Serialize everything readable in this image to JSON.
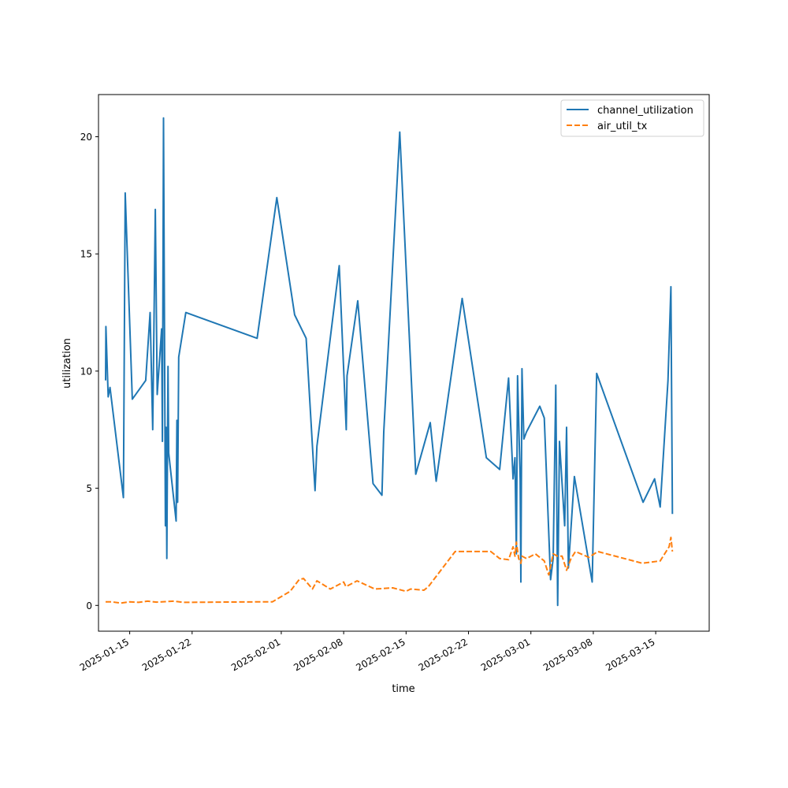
{
  "chart_data": {
    "type": "line",
    "title": "",
    "xlabel": "time",
    "ylabel": "utilization",
    "xlim": [
      "2025-01-11T12:00",
      "2025-03-21T00:00"
    ],
    "ylim": [
      -1.1,
      21.8
    ],
    "x_ticks": [
      "2025-01-15",
      "2025-01-22",
      "2025-02-01",
      "2025-02-08",
      "2025-02-15",
      "2025-02-22",
      "2025-03-01",
      "2025-03-08",
      "2025-03-15"
    ],
    "y_ticks": [
      0,
      5,
      10,
      15,
      20
    ],
    "grid": false,
    "legend": "top-right",
    "series": [
      {
        "name": "channel_utilization",
        "color": "#1f77b4",
        "dash": "solid",
        "points": [
          [
            "2025-01-12T07:00",
            9.6
          ],
          [
            "2025-01-12T08:00",
            11.9
          ],
          [
            "2025-01-12T14:00",
            8.9
          ],
          [
            "2025-01-12T19:00",
            9.3
          ],
          [
            "2025-01-14T07:00",
            4.6
          ],
          [
            "2025-01-14T12:00",
            17.6
          ],
          [
            "2025-01-15T07:00",
            8.8
          ],
          [
            "2025-01-16T19:00",
            9.6
          ],
          [
            "2025-01-17T07:00",
            12.5
          ],
          [
            "2025-01-17T14:00",
            7.5
          ],
          [
            "2025-01-17T21:00",
            16.9
          ],
          [
            "2025-01-18T02:00",
            9.0
          ],
          [
            "2025-01-18T14:00",
            11.8
          ],
          [
            "2025-01-18T16:00",
            7.0
          ],
          [
            "2025-01-18T19:00",
            20.8
          ],
          [
            "2025-01-19T00:00",
            3.4
          ],
          [
            "2025-01-19T02:00",
            7.6
          ],
          [
            "2025-01-19T04:00",
            2.0
          ],
          [
            "2025-01-19T07:00",
            10.2
          ],
          [
            "2025-01-19T09:00",
            6.5
          ],
          [
            "2025-01-20T05:00",
            3.6
          ],
          [
            "2025-01-20T07:00",
            7.9
          ],
          [
            "2025-01-20T09:00",
            4.4
          ],
          [
            "2025-01-20T12:00",
            10.6
          ],
          [
            "2025-01-21T07:00",
            12.5
          ],
          [
            "2025-01-29T07:00",
            11.4
          ],
          [
            "2025-01-31T12:00",
            17.4
          ],
          [
            "2025-02-02T12:00",
            12.4
          ],
          [
            "2025-02-03T19:00",
            11.4
          ],
          [
            "2025-02-04T19:00",
            4.9
          ],
          [
            "2025-02-05T00:00",
            6.8
          ],
          [
            "2025-02-07T12:00",
            14.5
          ],
          [
            "2025-02-08T07:00",
            7.5
          ],
          [
            "2025-02-08T09:00",
            9.8
          ],
          [
            "2025-02-09T14:00",
            13.0
          ],
          [
            "2025-02-11T07:00",
            5.2
          ],
          [
            "2025-02-12T07:00",
            4.7
          ],
          [
            "2025-02-12T12:00",
            7.4
          ],
          [
            "2025-02-14T07:00",
            20.2
          ],
          [
            "2025-02-16T02:00",
            5.6
          ],
          [
            "2025-02-17T17:00",
            7.8
          ],
          [
            "2025-02-18T09:00",
            5.3
          ],
          [
            "2025-02-21T07:00",
            13.1
          ],
          [
            "2025-02-24T00:00",
            6.3
          ],
          [
            "2025-02-25T12:00",
            5.8
          ],
          [
            "2025-02-26T12:00",
            9.7
          ],
          [
            "2025-02-27T00:00",
            5.4
          ],
          [
            "2025-02-27T05:00",
            6.3
          ],
          [
            "2025-02-27T09:00",
            2.2
          ],
          [
            "2025-02-27T12:00",
            9.8
          ],
          [
            "2025-02-27T19:00",
            5.4
          ],
          [
            "2025-02-27T21:00",
            1.0
          ],
          [
            "2025-02-28T00:00",
            10.1
          ],
          [
            "2025-02-28T05:00",
            7.1
          ],
          [
            "2025-02-28T12:00",
            7.4
          ],
          [
            "2025-03-02T00:00",
            8.5
          ],
          [
            "2025-03-02T12:00",
            8.0
          ],
          [
            "2025-03-03T05:00",
            1.1
          ],
          [
            "2025-03-03T12:00",
            2.0
          ],
          [
            "2025-03-03T19:00",
            9.4
          ],
          [
            "2025-03-04T00:00",
            0.0
          ],
          [
            "2025-03-04T05:00",
            7.0
          ],
          [
            "2025-03-04T19:00",
            3.4
          ],
          [
            "2025-03-05T00:00",
            7.6
          ],
          [
            "2025-03-05T05:00",
            1.6
          ],
          [
            "2025-03-05T21:00",
            5.5
          ],
          [
            "2025-03-07T21:00",
            1.0
          ],
          [
            "2025-03-08T09:00",
            9.9
          ],
          [
            "2025-03-13T14:00",
            4.4
          ],
          [
            "2025-03-14T21:00",
            5.4
          ],
          [
            "2025-03-15T12:00",
            4.2
          ],
          [
            "2025-03-16T09:00",
            9.6
          ],
          [
            "2025-03-16T17:00",
            13.6
          ],
          [
            "2025-03-16T21:00",
            3.9
          ]
        ]
      },
      {
        "name": "air_util_tx",
        "color": "#ff7f0e",
        "dash": "dashed",
        "points": [
          [
            "2025-01-12T07:00",
            0.15
          ],
          [
            "2025-01-13T00:00",
            0.15
          ],
          [
            "2025-01-14T00:00",
            0.1
          ],
          [
            "2025-01-15T00:00",
            0.15
          ],
          [
            "2025-01-16T00:00",
            0.13
          ],
          [
            "2025-01-17T00:00",
            0.18
          ],
          [
            "2025-01-18T00:00",
            0.14
          ],
          [
            "2025-01-19T00:00",
            0.16
          ],
          [
            "2025-01-20T00:00",
            0.18
          ],
          [
            "2025-01-21T00:00",
            0.13
          ],
          [
            "2025-01-29T00:00",
            0.15
          ],
          [
            "2025-01-31T00:00",
            0.15
          ],
          [
            "2025-02-02T00:00",
            0.6
          ],
          [
            "2025-02-03T00:00",
            1.1
          ],
          [
            "2025-02-03T12:00",
            1.15
          ],
          [
            "2025-02-04T12:00",
            0.7
          ],
          [
            "2025-02-05T00:00",
            1.05
          ],
          [
            "2025-02-06T12:00",
            0.7
          ],
          [
            "2025-02-08T00:00",
            1.0
          ],
          [
            "2025-02-08T06:00",
            0.8
          ],
          [
            "2025-02-09T12:00",
            1.05
          ],
          [
            "2025-02-11T12:00",
            0.7
          ],
          [
            "2025-02-13T12:00",
            0.75
          ],
          [
            "2025-02-15T00:00",
            0.6
          ],
          [
            "2025-02-15T12:00",
            0.7
          ],
          [
            "2025-02-17T00:00",
            0.65
          ],
          [
            "2025-02-17T12:00",
            0.8
          ],
          [
            "2025-02-20T12:00",
            2.3
          ],
          [
            "2025-02-23T12:00",
            2.3
          ],
          [
            "2025-02-24T12:00",
            2.3
          ],
          [
            "2025-02-25T12:00",
            2.0
          ],
          [
            "2025-02-26T12:00",
            1.95
          ],
          [
            "2025-02-27T00:00",
            2.5
          ],
          [
            "2025-02-27T05:00",
            2.1
          ],
          [
            "2025-02-27T09:00",
            2.7
          ],
          [
            "2025-02-27T15:00",
            2.0
          ],
          [
            "2025-02-27T21:00",
            1.8
          ],
          [
            "2025-02-28T00:00",
            2.1
          ],
          [
            "2025-02-28T12:00",
            2.0
          ],
          [
            "2025-03-01T12:00",
            2.2
          ],
          [
            "2025-03-02T12:00",
            1.9
          ],
          [
            "2025-03-03T00:00",
            1.3
          ],
          [
            "2025-03-03T12:00",
            2.2
          ],
          [
            "2025-03-04T00:00",
            2.1
          ],
          [
            "2025-03-04T12:00",
            2.1
          ],
          [
            "2025-03-05T00:00",
            1.5
          ],
          [
            "2025-03-05T12:00",
            2.0
          ],
          [
            "2025-03-06T00:00",
            2.3
          ],
          [
            "2025-03-07T12:00",
            2.05
          ],
          [
            "2025-03-08T12:00",
            2.3
          ],
          [
            "2025-03-13T12:00",
            1.8
          ],
          [
            "2025-03-15T12:00",
            1.9
          ],
          [
            "2025-03-16T12:00",
            2.5
          ],
          [
            "2025-03-16T17:00",
            2.9
          ],
          [
            "2025-03-16T21:00",
            2.3
          ]
        ]
      }
    ]
  }
}
